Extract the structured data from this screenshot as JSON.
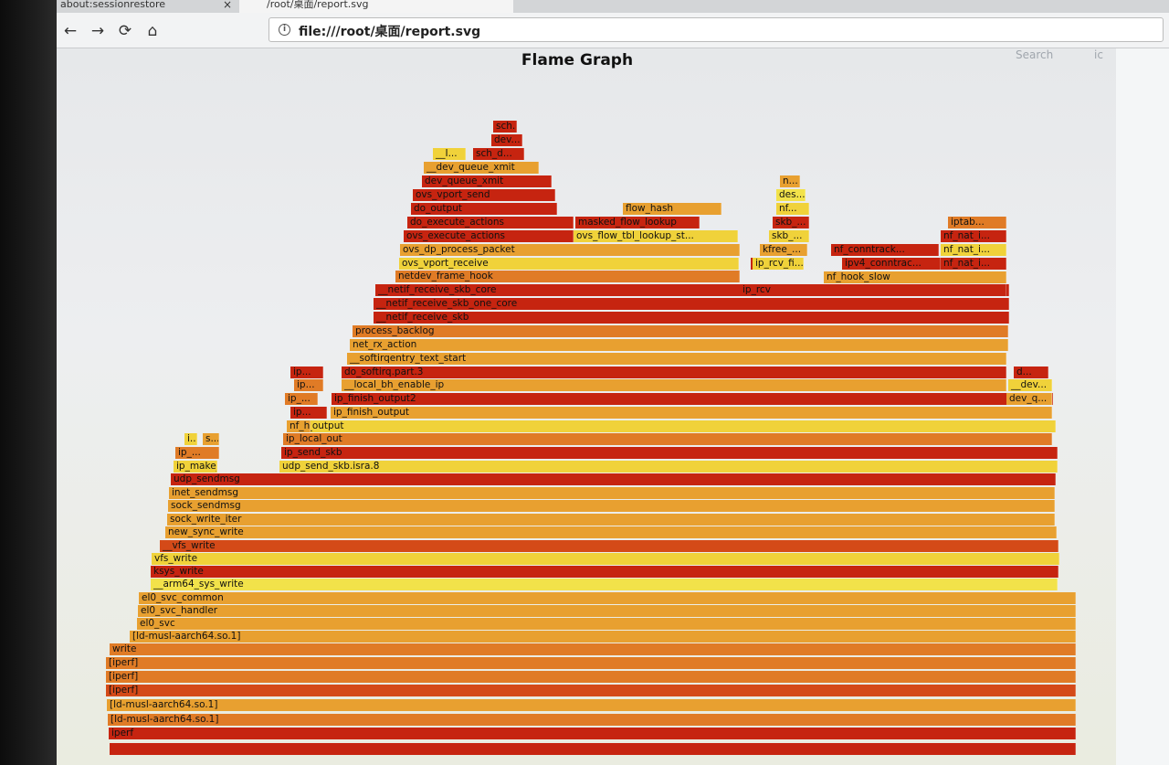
{
  "browser": {
    "tabs": [
      {
        "label": "about:sessionrestore"
      },
      {
        "label": "/root/桌面/report.svg"
      }
    ],
    "tab_close_glyph": "×",
    "nav": {
      "back": "←",
      "forward": "→",
      "reload": "⟳",
      "home": "⌂"
    },
    "url": "file:///root/桌面/report.svg",
    "info_glyph": "i"
  },
  "flamegraph": {
    "title": "Flame Graph",
    "search_label": "Search",
    "ic_label": "ic",
    "palette": {
      "red": "#c62410",
      "redorange": "#d44a18",
      "orange": "#e07b26",
      "amber": "#e8a030",
      "yellow": "#f0d23a",
      "lightyellow": "#f2e24a"
    },
    "frames": [
      {
        "label": "",
        "color": "red"
      },
      {
        "label": "iperf",
        "color": "red"
      },
      {
        "label": "[ld-musl-aarch64.so.1]",
        "color": "orange"
      },
      {
        "label": "[ld-musl-aarch64.so.1]",
        "color": "amber"
      },
      {
        "label": "[iperf]",
        "color": "redorange"
      },
      {
        "label": "[iperf]",
        "color": "orange"
      },
      {
        "label": "[iperf]",
        "color": "orange"
      },
      {
        "label": "write",
        "color": "orange"
      },
      {
        "label": "[ld-musl-aarch64.so.1]",
        "color": "amber"
      },
      {
        "label": "el0_svc",
        "color": "amber"
      },
      {
        "label": "el0_svc_handler",
        "color": "amber"
      },
      {
        "label": "el0_svc_common",
        "color": "amber"
      },
      {
        "label": "__arm64_sys_write",
        "color": "lightyellow"
      },
      {
        "label": "ksys_write",
        "color": "red"
      },
      {
        "label": "vfs_write",
        "color": "yellow"
      },
      {
        "label": "__vfs_write",
        "color": "redorange"
      },
      {
        "label": "new_sync_write",
        "color": "amber"
      },
      {
        "label": "sock_write_iter",
        "color": "amber"
      },
      {
        "label": "sock_sendmsg",
        "color": "amber"
      },
      {
        "label": "inet_sendmsg",
        "color": "amber"
      },
      {
        "label": "udp_sendmsg",
        "color": "red"
      },
      {
        "label": "ip_make_skb",
        "color": "yellow"
      },
      {
        "label": "ip_...",
        "color": "orange"
      },
      {
        "label": "udp_send_skb.isra.8",
        "color": "yellow"
      },
      {
        "label": "ip_send_skb",
        "color": "red"
      },
      {
        "label": "ip_local_out",
        "color": "orange"
      },
      {
        "label": "ip_output",
        "color": "yellow"
      },
      {
        "label": "ip_finish_output",
        "color": "amber"
      },
      {
        "label": "ip_finish_output2",
        "color": "red"
      },
      {
        "label": "__local_bh_enable_ip",
        "color": "amber"
      },
      {
        "label": "do_softirq.part.3",
        "color": "red"
      },
      {
        "label": "__softirqentry_text_start",
        "color": "amber"
      },
      {
        "label": "net_rx_action",
        "color": "amber"
      },
      {
        "label": "process_backlog",
        "color": "orange"
      },
      {
        "label": "__netif_receive_skb",
        "color": "red"
      },
      {
        "label": "__netif_receive_skb_one_core",
        "color": "red"
      },
      {
        "label": "__netif_receive_skb_core",
        "color": "red"
      },
      {
        "label": "ip_rcv",
        "color": "red"
      },
      {
        "label": "netdev_frame_hook",
        "color": "orange"
      },
      {
        "label": "ip_rcv_fi...",
        "color": "red"
      },
      {
        "label": "nf_hook_slow",
        "color": "amber"
      },
      {
        "label": "ovs_vport_receive",
        "color": "yellow"
      },
      {
        "label": "ip_rcv_fi...",
        "color": "yellow"
      },
      {
        "label": "ipv4_conntrac...",
        "color": "red"
      },
      {
        "label": "nf_nat_i...",
        "color": "red"
      },
      {
        "label": "ovs_dp_process_packet",
        "color": "amber"
      },
      {
        "label": "kfree_...",
        "color": "amber"
      },
      {
        "label": "nf_conntrack...",
        "color": "red"
      },
      {
        "label": "nf_nat_i...",
        "color": "yellow"
      },
      {
        "label": "ovs_execute_actions",
        "color": "red"
      },
      {
        "label": "ovs_flow_tbl_lookup_st...",
        "color": "yellow"
      },
      {
        "label": "skb_...",
        "color": "yellow"
      },
      {
        "label": "nf_nat_i...",
        "color": "red"
      },
      {
        "label": "do_execute_actions",
        "color": "red"
      },
      {
        "label": "masked_flow_lookup",
        "color": "red"
      },
      {
        "label": "skb_...",
        "color": "red"
      },
      {
        "label": "iptab...",
        "color": "orange"
      },
      {
        "label": "do_output",
        "color": "red"
      },
      {
        "label": "flow_hash",
        "color": "amber"
      },
      {
        "label": "nf...",
        "color": "yellow"
      },
      {
        "label": "ovs_vport_send",
        "color": "red"
      },
      {
        "label": "des...",
        "color": "lightyellow"
      },
      {
        "label": "dev_queue_xmit",
        "color": "red"
      },
      {
        "label": "n...",
        "color": "amber"
      },
      {
        "label": "__dev_queue_xmit",
        "color": "amber"
      },
      {
        "label": "__I...",
        "color": "yellow"
      },
      {
        "label": "sch_d...",
        "color": "red"
      },
      {
        "label": "dev...",
        "color": "red"
      },
      {
        "label": "sch...",
        "color": "red"
      },
      {
        "label": "ip...",
        "color": "red"
      },
      {
        "label": "ip_...",
        "color": "orange"
      },
      {
        "label": "ip...",
        "color": "orange"
      },
      {
        "label": "nf_h...",
        "color": "amber"
      },
      {
        "label": "ip...",
        "color": "red"
      },
      {
        "label": "d...",
        "color": "red"
      },
      {
        "label": "__dev...",
        "color": "yellow"
      },
      {
        "label": "dev_q...",
        "color": "amber"
      },
      {
        "label": "i...",
        "color": "yellow"
      },
      {
        "label": "s...",
        "color": "amber"
      }
    ]
  }
}
